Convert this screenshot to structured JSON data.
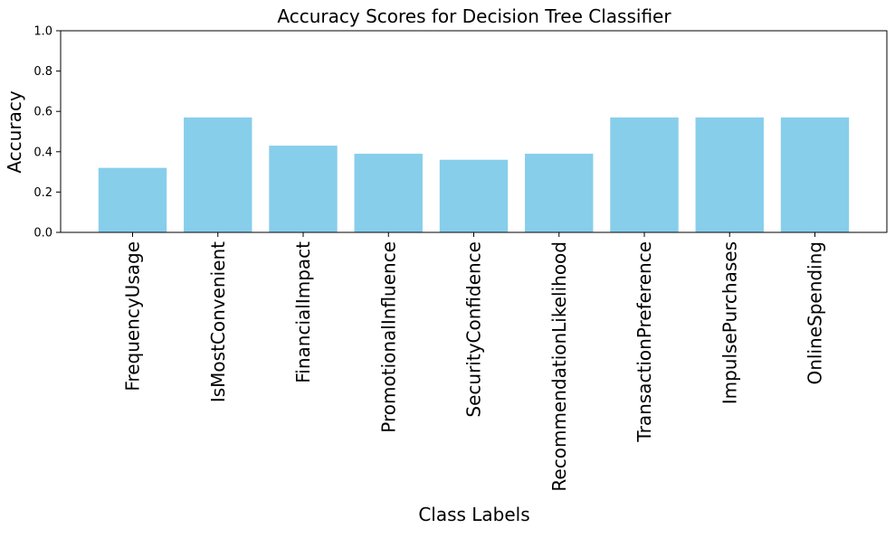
{
  "chart_data": {
    "type": "bar",
    "title": "Accuracy Scores for Decision Tree Classifier",
    "xlabel": "Class Labels",
    "ylabel": "Accuracy",
    "categories": [
      "FrequencyUsage",
      "IsMostConvenient",
      "FinancialImpact",
      "PromotionalInfluence",
      "SecurityConfidence",
      "RecommendationLikelihood",
      "TransactionPreference",
      "ImpulsePurchases",
      "OnlineSpending"
    ],
    "values": [
      0.32,
      0.57,
      0.43,
      0.39,
      0.36,
      0.39,
      0.57,
      0.57,
      0.57
    ],
    "ylim": [
      0,
      1
    ],
    "yticks": [
      "0.0",
      "0.2",
      "0.4",
      "0.6",
      "0.8",
      "1.0"
    ],
    "grid": false,
    "bar_color": "#87CEEB"
  }
}
